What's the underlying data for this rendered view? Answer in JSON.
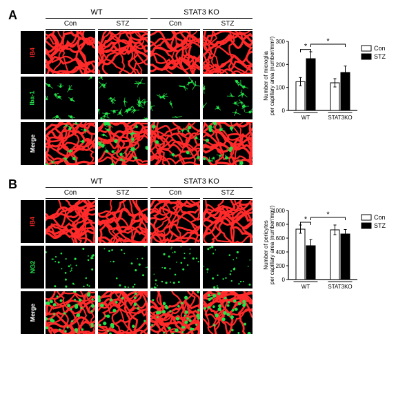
{
  "panels": {
    "A": {
      "letter": "A",
      "group1": "WT",
      "group2": "STAT3 KO",
      "cols": [
        "Con",
        "STZ",
        "Con",
        "STZ"
      ],
      "rows": [
        {
          "label": "IB4",
          "color": "#ff2a2a"
        },
        {
          "label": "Iba-1",
          "color": "#23e24a"
        },
        {
          "label": "Merge",
          "color": "#ffffff"
        }
      ],
      "chart": {
        "ylabel": "Number of microglia\nper capillary area (number/mm²)",
        "ylim": [
          0,
          300
        ],
        "ytick_step": 100,
        "categories": [
          "WT",
          "STAT3KO"
        ],
        "legend": [
          "Con",
          "STZ"
        ],
        "colors": {
          "Con": "#ffffff",
          "STZ": "#000000"
        },
        "bar_border": "#000000",
        "values": {
          "WT": {
            "Con": 125,
            "STZ": 225
          },
          "STAT3KO": {
            "Con": 120,
            "STZ": 165
          }
        },
        "errors": {
          "WT": {
            "Con": 18,
            "STZ": 30
          },
          "STAT3KO": {
            "Con": 18,
            "STZ": 28
          }
        },
        "sig": [
          {
            "from": "WT.Con",
            "to": "WT.STZ",
            "label": "*",
            "y": 265
          },
          {
            "from": "WT.STZ",
            "to": "STAT3KO.STZ",
            "label": "*",
            "y": 288
          }
        ],
        "axis_color": "#000000",
        "tick_fontsize": 8,
        "label_fontsize": 8
      }
    },
    "B": {
      "letter": "B",
      "group1": "WT",
      "group2": "STAT3 KO",
      "cols": [
        "Con",
        "STZ",
        "Con",
        "STZ"
      ],
      "rows": [
        {
          "label": "IB4",
          "color": "#ff2a2a"
        },
        {
          "label": "NG2",
          "color": "#23e24a"
        },
        {
          "label": "Merge",
          "color": "#ffffff"
        }
      ],
      "chart": {
        "ylabel": "Number of pericytes\nper capillary area (number/mm²)",
        "ylim": [
          0,
          1000
        ],
        "ytick_step": 200,
        "categories": [
          "WT",
          "STAT3KO"
        ],
        "legend": [
          "Con",
          "STZ"
        ],
        "colors": {
          "Con": "#ffffff",
          "STZ": "#000000"
        },
        "bar_border": "#000000",
        "values": {
          "WT": {
            "Con": 730,
            "STZ": 490
          },
          "STAT3KO": {
            "Con": 720,
            "STZ": 660
          }
        },
        "errors": {
          "WT": {
            "Con": 60,
            "STZ": 90
          },
          "STAT3KO": {
            "Con": 70,
            "STZ": 65
          }
        },
        "sig": [
          {
            "from": "WT.Con",
            "to": "WT.STZ",
            "label": "*",
            "y": 830
          },
          {
            "from": "WT.STZ",
            "to": "STAT3KO.STZ",
            "label": "*",
            "y": 900
          }
        ],
        "axis_color": "#000000",
        "tick_fontsize": 8,
        "label_fontsize": 8
      }
    }
  }
}
